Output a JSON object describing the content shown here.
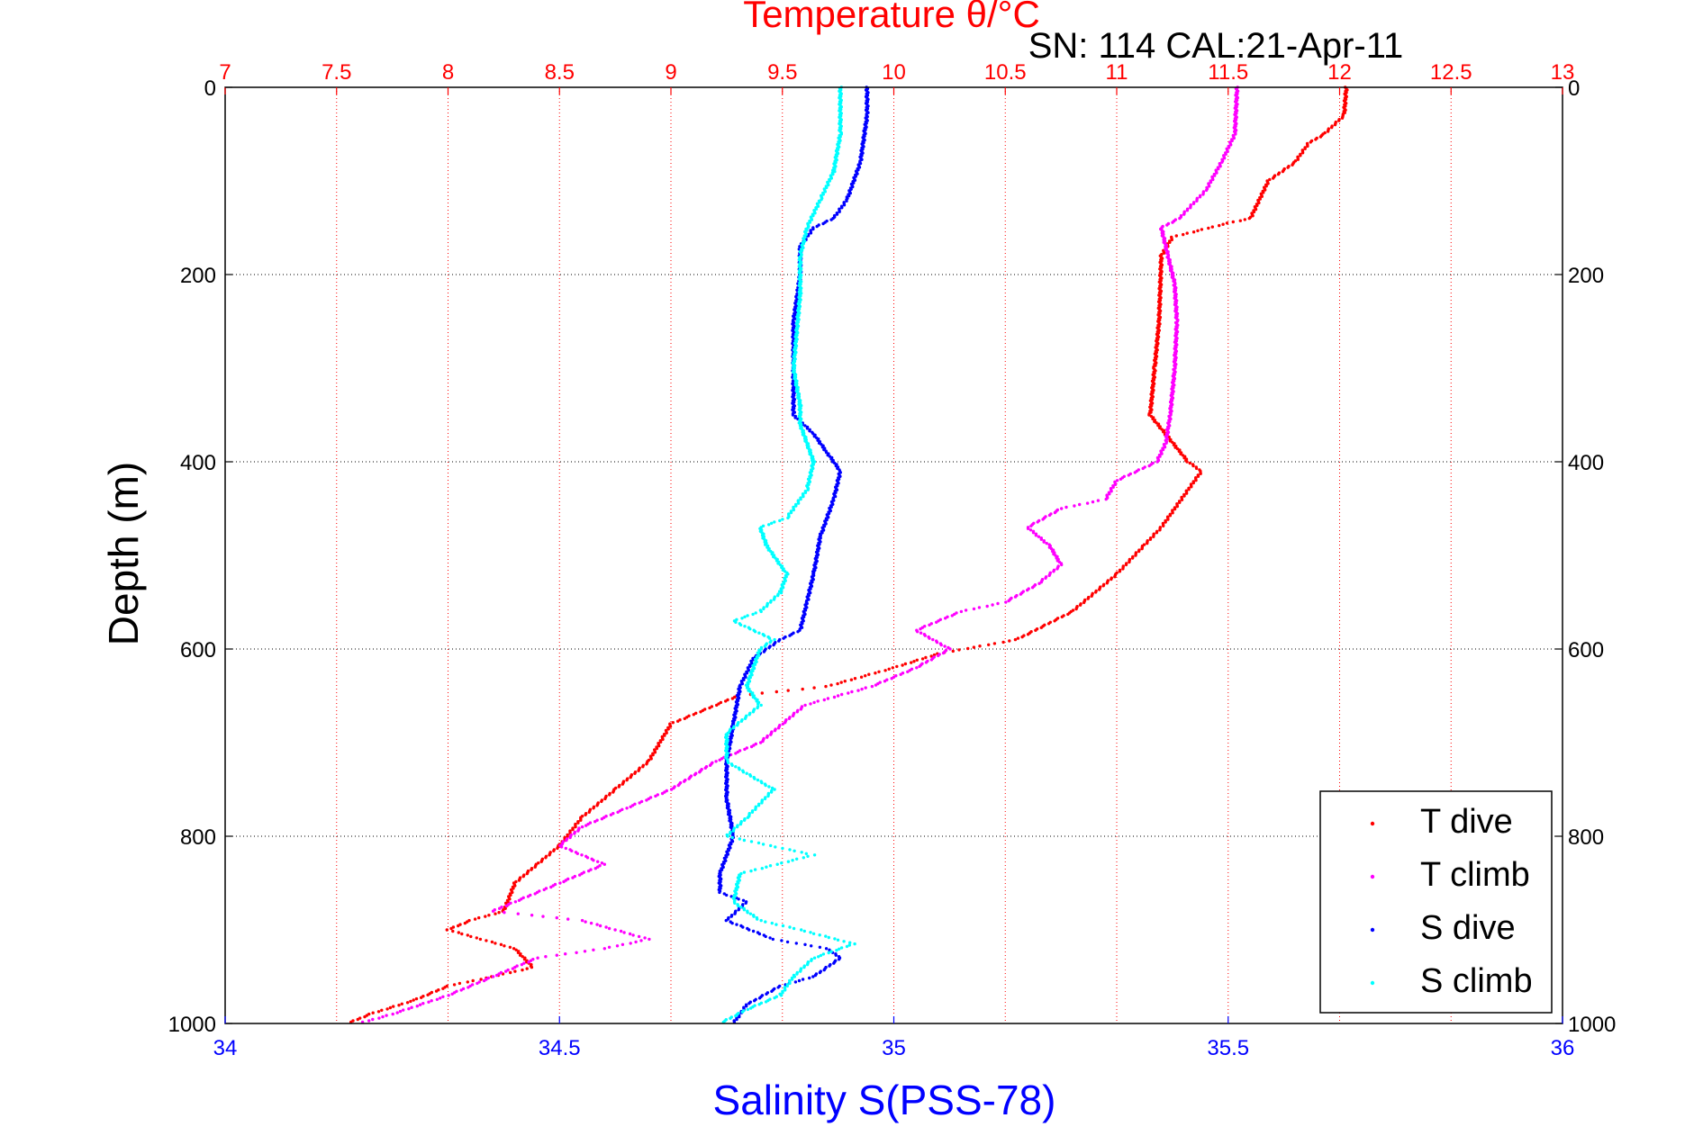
{
  "chart_data": {
    "type": "scatter",
    "title": "Temperature θ/°C",
    "subtitle": "SN: 114  CAL:21-Apr-11",
    "xlabel": "Salinity S(PSS-78)",
    "ylabel": "Depth (m)",
    "x_top_label": "Temperature θ/°C",
    "x_top_lim": [
      7,
      13
    ],
    "x_top_ticks": [
      "7",
      "7.5",
      "8",
      "8.5",
      "9",
      "9.5",
      "10",
      "10.5",
      "11",
      "11.5",
      "12",
      "12.5",
      "13"
    ],
    "x_bottom_lim": [
      34,
      36
    ],
    "x_bottom_ticks": [
      "34",
      "34.5",
      "35",
      "35.5",
      "36"
    ],
    "ylim": [
      0,
      1000
    ],
    "y_ticks": [
      "0",
      "200",
      "400",
      "600",
      "800",
      "1000"
    ],
    "y_reversed": true,
    "grid": true,
    "legend_position": "bottom-right",
    "colors": {
      "t_dive": "#ff0000",
      "t_climb": "#ff00ff",
      "s_dive": "#0000ff",
      "s_climb": "#00ffff"
    },
    "series": [
      {
        "name": "T dive",
        "axis": "temperature",
        "color": "#ff0000",
        "points": [
          [
            12.03,
            0
          ],
          [
            12.02,
            30
          ],
          [
            11.93,
            50
          ],
          [
            11.86,
            60
          ],
          [
            11.8,
            80
          ],
          [
            11.68,
            100
          ],
          [
            11.6,
            140
          ],
          [
            11.5,
            145
          ],
          [
            11.25,
            160
          ],
          [
            11.2,
            180
          ],
          [
            11.19,
            250
          ],
          [
            11.17,
            300
          ],
          [
            11.15,
            350
          ],
          [
            11.32,
            400
          ],
          [
            11.38,
            410
          ],
          [
            11.2,
            470
          ],
          [
            11.12,
            490
          ],
          [
            11.0,
            520
          ],
          [
            10.8,
            560
          ],
          [
            10.55,
            590
          ],
          [
            10.2,
            605
          ],
          [
            10.0,
            620
          ],
          [
            9.7,
            640
          ],
          [
            9.3,
            650
          ],
          [
            9.0,
            680
          ],
          [
            8.9,
            720
          ],
          [
            8.75,
            750
          ],
          [
            8.6,
            780
          ],
          [
            8.5,
            810
          ],
          [
            8.4,
            830
          ],
          [
            8.3,
            850
          ],
          [
            8.25,
            880
          ],
          [
            8.1,
            890
          ],
          [
            8.0,
            900
          ],
          [
            8.15,
            910
          ],
          [
            8.3,
            920
          ],
          [
            8.38,
            940
          ],
          [
            8.2,
            950
          ],
          [
            8.0,
            960
          ],
          [
            7.85,
            975
          ],
          [
            7.65,
            990
          ],
          [
            7.55,
            1000
          ]
        ]
      },
      {
        "name": "T climb",
        "axis": "temperature",
        "color": "#ff00ff",
        "points": [
          [
            11.54,
            0
          ],
          [
            11.53,
            50
          ],
          [
            11.47,
            80
          ],
          [
            11.4,
            110
          ],
          [
            11.28,
            140
          ],
          [
            11.2,
            150
          ],
          [
            11.23,
            180
          ],
          [
            11.26,
            210
          ],
          [
            11.27,
            250
          ],
          [
            11.26,
            300
          ],
          [
            11.24,
            350
          ],
          [
            11.22,
            380
          ],
          [
            11.18,
            400
          ],
          [
            11.0,
            420
          ],
          [
            10.95,
            440
          ],
          [
            10.75,
            450
          ],
          [
            10.6,
            470
          ],
          [
            10.7,
            490
          ],
          [
            10.75,
            510
          ],
          [
            10.65,
            530
          ],
          [
            10.5,
            550
          ],
          [
            10.3,
            560
          ],
          [
            10.1,
            580
          ],
          [
            10.25,
            600
          ],
          [
            10.1,
            620
          ],
          [
            9.9,
            640
          ],
          [
            9.6,
            660
          ],
          [
            9.5,
            680
          ],
          [
            9.4,
            700
          ],
          [
            9.2,
            720
          ],
          [
            9.0,
            750
          ],
          [
            8.8,
            770
          ],
          [
            8.6,
            790
          ],
          [
            8.5,
            810
          ],
          [
            8.7,
            830
          ],
          [
            8.5,
            850
          ],
          [
            8.3,
            870
          ],
          [
            8.2,
            880
          ],
          [
            8.6,
            890
          ],
          [
            8.9,
            910
          ],
          [
            8.7,
            920
          ],
          [
            8.4,
            930
          ],
          [
            8.2,
            950
          ],
          [
            8.0,
            970
          ],
          [
            7.75,
            990
          ],
          [
            7.6,
            1000
          ]
        ]
      },
      {
        "name": "S dive",
        "axis": "salinity",
        "color": "#0000ff",
        "points": [
          [
            34.96,
            0
          ],
          [
            34.96,
            30
          ],
          [
            34.95,
            80
          ],
          [
            34.93,
            120
          ],
          [
            34.91,
            140
          ],
          [
            34.88,
            150
          ],
          [
            34.86,
            170
          ],
          [
            34.86,
            200
          ],
          [
            34.85,
            250
          ],
          [
            34.85,
            300
          ],
          [
            34.85,
            350
          ],
          [
            34.88,
            370
          ],
          [
            34.9,
            390
          ],
          [
            34.92,
            410
          ],
          [
            34.91,
            440
          ],
          [
            34.89,
            480
          ],
          [
            34.88,
            520
          ],
          [
            34.87,
            550
          ],
          [
            34.86,
            580
          ],
          [
            34.83,
            590
          ],
          [
            34.79,
            610
          ],
          [
            34.77,
            640
          ],
          [
            34.76,
            680
          ],
          [
            34.75,
            720
          ],
          [
            34.75,
            760
          ],
          [
            34.76,
            800
          ],
          [
            34.74,
            840
          ],
          [
            34.74,
            860
          ],
          [
            34.78,
            870
          ],
          [
            34.75,
            890
          ],
          [
            34.82,
            910
          ],
          [
            34.9,
            920
          ],
          [
            34.92,
            930
          ],
          [
            34.88,
            950
          ],
          [
            34.83,
            960
          ],
          [
            34.78,
            980
          ],
          [
            34.76,
            1000
          ]
        ]
      },
      {
        "name": "S climb",
        "axis": "salinity",
        "color": "#00ffff",
        "points": [
          [
            34.92,
            0
          ],
          [
            34.92,
            50
          ],
          [
            34.91,
            90
          ],
          [
            34.89,
            120
          ],
          [
            34.87,
            150
          ],
          [
            34.86,
            180
          ],
          [
            34.86,
            220
          ],
          [
            34.85,
            300
          ],
          [
            34.86,
            340
          ],
          [
            34.86,
            360
          ],
          [
            34.88,
            400
          ],
          [
            34.87,
            430
          ],
          [
            34.84,
            460
          ],
          [
            34.8,
            470
          ],
          [
            34.81,
            490
          ],
          [
            34.84,
            520
          ],
          [
            34.83,
            540
          ],
          [
            34.8,
            560
          ],
          [
            34.76,
            570
          ],
          [
            34.82,
            590
          ],
          [
            34.8,
            600
          ],
          [
            34.78,
            640
          ],
          [
            34.8,
            660
          ],
          [
            34.75,
            690
          ],
          [
            34.75,
            720
          ],
          [
            34.82,
            750
          ],
          [
            34.78,
            780
          ],
          [
            34.75,
            800
          ],
          [
            34.88,
            820
          ],
          [
            34.77,
            840
          ],
          [
            34.76,
            870
          ],
          [
            34.8,
            890
          ],
          [
            34.86,
            900
          ],
          [
            34.94,
            915
          ],
          [
            34.88,
            930
          ],
          [
            34.85,
            950
          ],
          [
            34.83,
            970
          ],
          [
            34.78,
            985
          ],
          [
            34.74,
            1000
          ]
        ]
      }
    ]
  }
}
